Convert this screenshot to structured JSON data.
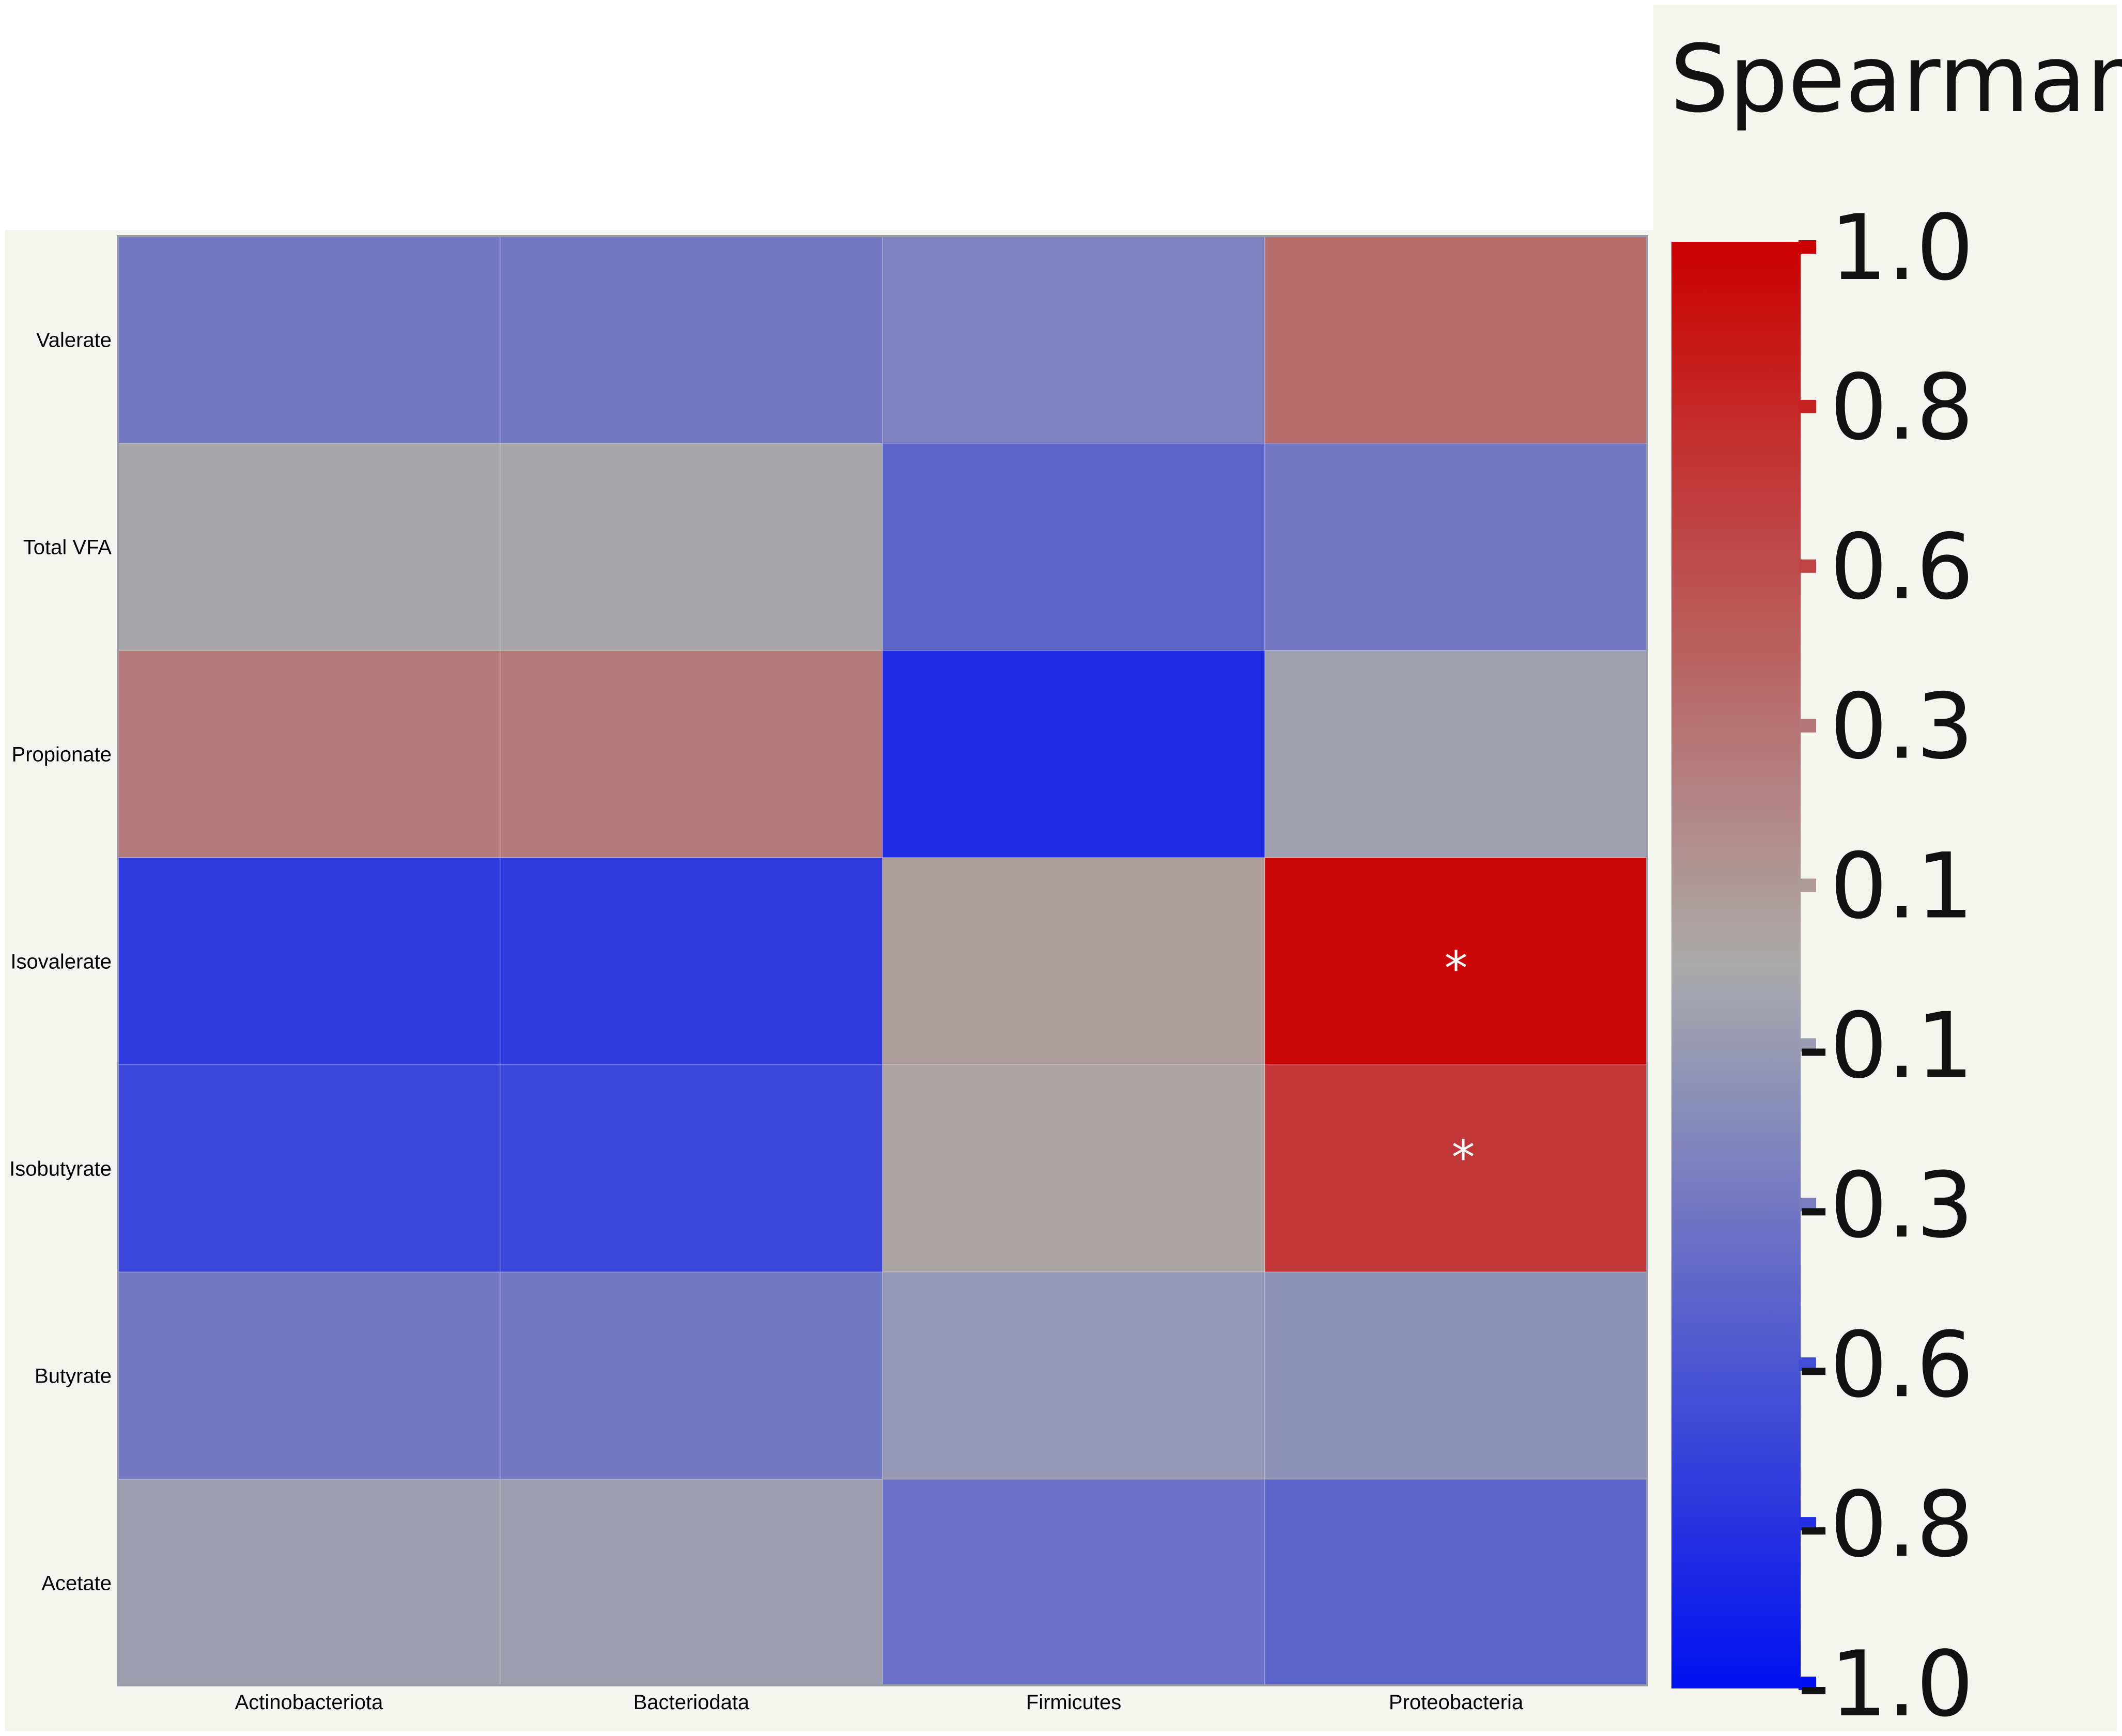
{
  "chart_data": {
    "type": "heatmap",
    "title": "",
    "xlabel": "",
    "ylabel": "",
    "rows": [
      "Valerate",
      "Total VFA",
      "Propionate",
      "Isovalerate",
      "Isobutyrate",
      "Butyrate",
      "Acetate"
    ],
    "columns": [
      "Actinobacteriota",
      "Bacteriodata",
      "Firmicutes",
      "Proteobacteria"
    ],
    "values": [
      [
        -0.33,
        -0.33,
        -0.27,
        0.37
      ],
      [
        -0.02,
        -0.02,
        -0.45,
        -0.33
      ],
      [
        0.28,
        0.28,
        -0.82,
        -0.07
      ],
      [
        -0.72,
        -0.72,
        0.08,
        0.96
      ],
      [
        -0.65,
        -0.65,
        0.03,
        0.68
      ],
      [
        -0.33,
        -0.33,
        -0.13,
        -0.17
      ],
      [
        -0.08,
        -0.08,
        -0.37,
        -0.45
      ]
    ],
    "significance": [
      [
        "",
        "",
        "",
        ""
      ],
      [
        "",
        "",
        "",
        ""
      ],
      [
        "",
        "",
        "",
        ""
      ],
      [
        "",
        "",
        "",
        "*"
      ],
      [
        "",
        "",
        "",
        "*"
      ],
      [
        "",
        "",
        "",
        ""
      ],
      [
        "",
        "",
        "",
        ""
      ]
    ],
    "colorbar": {
      "title": "Spearman ρ",
      "range": [
        -1.0,
        1.0
      ],
      "colors": {
        "low": "#0010f0",
        "mid": "#ababab",
        "high": "#cc0000"
      },
      "ticks": [
        {
          "value": 1.0,
          "label": "1.0"
        },
        {
          "value": 0.8,
          "label": "0.8"
        },
        {
          "value": 0.6,
          "label": "0.6"
        },
        {
          "value": 0.3,
          "label": "0.3"
        },
        {
          "value": 0.1,
          "label": "0.1"
        },
        {
          "value": -0.1,
          "label": "-0.1"
        },
        {
          "value": -0.3,
          "label": "-0.3"
        },
        {
          "value": -0.6,
          "label": "-0.6"
        },
        {
          "value": -0.8,
          "label": "-0.8"
        },
        {
          "value": -1.0,
          "label": "-1.0"
        }
      ]
    }
  }
}
